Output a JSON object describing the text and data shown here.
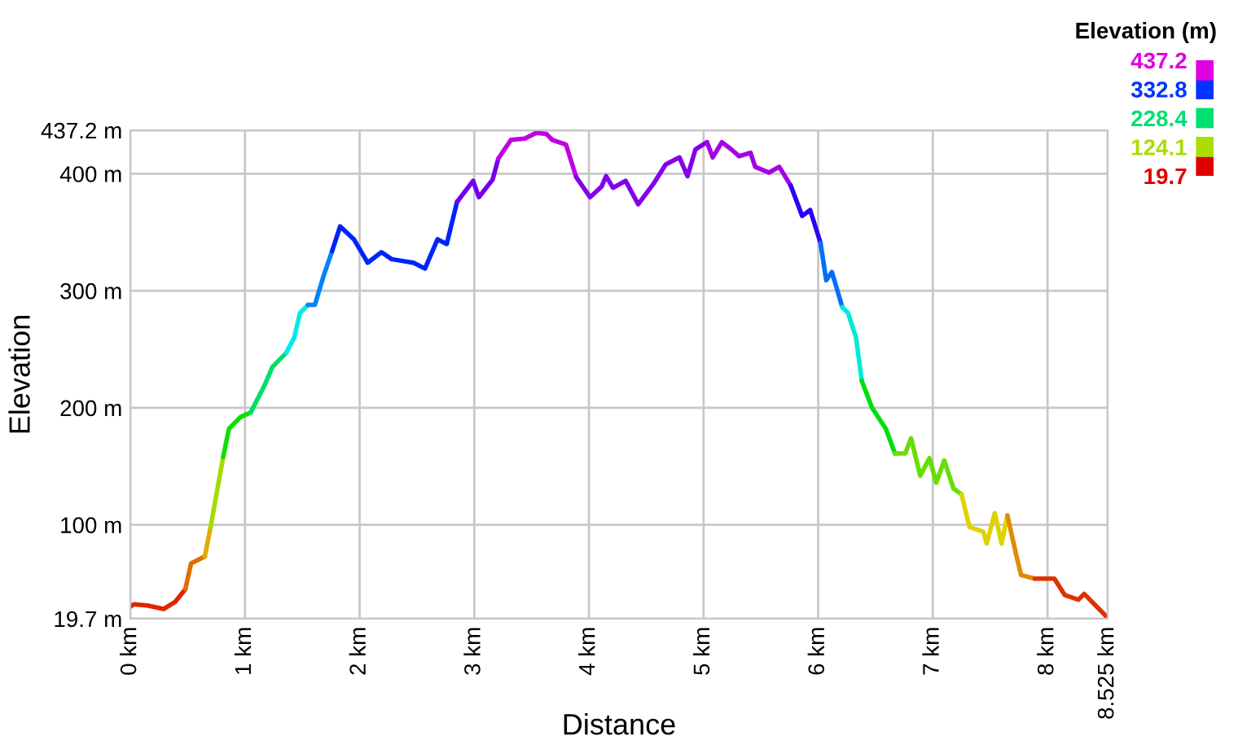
{
  "chart_data": {
    "type": "line",
    "xlabel": "Distance",
    "ylabel": "Elevation",
    "clabel": "Elevation (m)",
    "xlim": [
      0,
      8.525
    ],
    "ylim": [
      19.7,
      437.2
    ],
    "xticks": [
      {
        "value": 0,
        "label": "0 km"
      },
      {
        "value": 1,
        "label": "1 km"
      },
      {
        "value": 2,
        "label": "2 km"
      },
      {
        "value": 3,
        "label": "3 km"
      },
      {
        "value": 4,
        "label": "4 km"
      },
      {
        "value": 5,
        "label": "5 km"
      },
      {
        "value": 6,
        "label": "6 km"
      },
      {
        "value": 7,
        "label": "7 km"
      },
      {
        "value": 8,
        "label": "8 km"
      },
      {
        "value": 8.525,
        "label": "8.525 km"
      }
    ],
    "yticks": [
      {
        "value": 19.7,
        "label": "19.7 m"
      },
      {
        "value": 100,
        "label": "100 m"
      },
      {
        "value": 200,
        "label": "200 m"
      },
      {
        "value": 300,
        "label": "300 m"
      },
      {
        "value": 400,
        "label": "400 m"
      },
      {
        "value": 437.2,
        "label": "437.2 m"
      }
    ],
    "clim": [
      19.7,
      437.2
    ],
    "cticks": [
      437.2,
      332.8,
      228.4,
      124.1,
      19.7
    ],
    "colors": [
      "#e000e0",
      "#0033ff",
      "#00e070",
      "#aadd00",
      "#e00000"
    ],
    "grid": true,
    "series": [
      {
        "x": [
          0,
          0.03,
          0.15,
          0.29,
          0.39,
          0.48
        ],
        "values": [
          30,
          32,
          31,
          28,
          34,
          45
        ]
      },
      {
        "x": [
          0.48,
          0.53,
          0.65
        ],
        "values": [
          45,
          67,
          73
        ]
      },
      {
        "x": [
          0.65,
          0.7
        ],
        "values": [
          73,
          98
        ]
      },
      {
        "x": [
          0.7,
          0.81
        ],
        "values": [
          98,
          158
        ]
      },
      {
        "x": [
          0.81,
          0.86,
          0.96,
          1.05
        ],
        "values": [
          158,
          182,
          192,
          196
        ]
      },
      {
        "x": [
          1.05,
          1.17,
          1.24,
          1.36
        ],
        "values": [
          196,
          219,
          235,
          247
        ]
      },
      {
        "x": [
          1.36,
          1.43,
          1.48,
          1.55
        ],
        "values": [
          247,
          260,
          281,
          288
        ]
      },
      {
        "x": [
          1.55,
          1.61,
          1.69,
          1.76
        ],
        "values": [
          288,
          288,
          314,
          334
        ]
      },
      {
        "x": [
          1.76,
          1.83,
          1.95,
          2.07,
          2.19,
          2.28,
          2.47,
          2.57,
          2.68,
          2.76,
          2.85
        ],
        "values": [
          334,
          355,
          344,
          324,
          333,
          327,
          324,
          319,
          344,
          340,
          376
        ]
      },
      {
        "x": [
          2.85,
          2.99,
          3.04,
          3.16,
          3.21
        ],
        "values": [
          376,
          394,
          380,
          395,
          413
        ]
      },
      {
        "x": [
          3.21,
          3.32,
          3.44,
          3.54,
          3.63,
          3.68,
          3.8,
          3.89
        ],
        "values": [
          413,
          429,
          430,
          435,
          434,
          429,
          425,
          397
        ]
      },
      {
        "x": [
          3.89,
          4.01,
          4.11,
          4.15,
          4.21,
          4.32,
          4.43,
          4.56,
          4.67,
          4.79,
          4.86,
          4.93,
          5.03
        ],
        "values": [
          397,
          380,
          389,
          398,
          388,
          394,
          374,
          391,
          408,
          414,
          398,
          421,
          427
        ]
      },
      {
        "x": [
          5.03,
          5.08,
          5.16,
          5.24,
          5.31,
          5.41,
          5.45,
          5.57,
          5.66,
          5.76
        ],
        "values": [
          427,
          414,
          427,
          421,
          415,
          418,
          406,
          401,
          406,
          390
        ]
      },
      {
        "x": [
          5.76,
          5.86,
          5.93,
          6.02
        ],
        "values": [
          390,
          364,
          369,
          341
        ]
      },
      {
        "x": [
          6.02,
          6.07,
          6.12,
          6.21
        ],
        "values": [
          341,
          309,
          316,
          286
        ]
      },
      {
        "x": [
          6.21,
          6.26,
          6.33,
          6.38
        ],
        "values": [
          286,
          281,
          260,
          223
        ]
      },
      {
        "x": [
          6.38,
          6.47,
          6.59,
          6.67
        ],
        "values": [
          223,
          200,
          182,
          161
        ]
      },
      {
        "x": [
          6.67,
          6.76,
          6.81,
          6.89,
          6.97,
          7.03,
          7.1,
          7.18,
          7.25
        ],
        "values": [
          161,
          161,
          174,
          142,
          157,
          136,
          155,
          131,
          126
        ]
      },
      {
        "x": [
          7.25,
          7.32,
          7.44,
          7.47,
          7.54,
          7.6,
          7.65
        ],
        "values": [
          126,
          98,
          94,
          84,
          110,
          84,
          108
        ]
      },
      {
        "x": [
          7.65,
          7.73,
          7.77,
          7.89
        ],
        "values": [
          108,
          73,
          57,
          54
        ]
      },
      {
        "x": [
          7.89,
          8.06,
          8.15,
          8.27,
          8.32,
          8.51,
          8.525
        ],
        "values": [
          54,
          54,
          40,
          36,
          41,
          22,
          19.7
        ]
      }
    ]
  }
}
